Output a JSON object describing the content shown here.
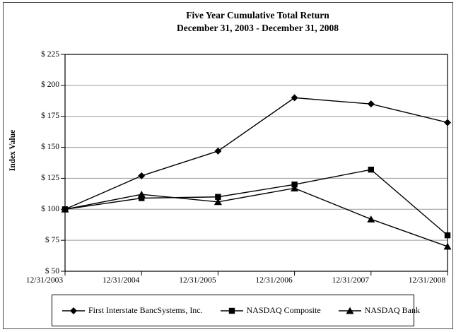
{
  "window": {
    "background": "#ffffff"
  },
  "colors": {
    "series": "#000000",
    "grid": "#9a9a9a",
    "axis": "#000000",
    "frame": "#000000",
    "outer_border": "#4a4a4a"
  },
  "chart_data": {
    "type": "line",
    "title": "Five Year Cumulative Total Return",
    "subtitle": "December 31, 2003 - December 31, 2008",
    "xlabel": "",
    "ylabel": "Index Value",
    "ylim": [
      50,
      225
    ],
    "y_tick_step": 25,
    "grid": true,
    "legend_position": "bottom",
    "y_ticks": [
      {
        "label": "$ 225",
        "value": 225
      },
      {
        "label": "$ 200",
        "value": 200
      },
      {
        "label": "$ 175",
        "value": 175
      },
      {
        "label": "$ 150",
        "value": 150
      },
      {
        "label": "$ 125",
        "value": 125
      },
      {
        "label": "$ 100",
        "value": 100
      },
      {
        "label": "$ 75",
        "value": 75
      },
      {
        "label": "$ 50",
        "value": 50
      }
    ],
    "categories": [
      "12/31/2003",
      "12/31/2004",
      "12/31/2005",
      "12/31/2006",
      "12/31/2007",
      "12/31/2008"
    ],
    "series": [
      {
        "name": "First Interstate BancSystems, Inc.",
        "marker": "diamond",
        "values": [
          100,
          127,
          147,
          190,
          185,
          170
        ]
      },
      {
        "name": "NASDAQ Composite",
        "marker": "square",
        "values": [
          100,
          109,
          110,
          120,
          132,
          79
        ]
      },
      {
        "name": "NASDAQ Bank",
        "marker": "triangle",
        "values": [
          100,
          112,
          106,
          117,
          92,
          70
        ]
      }
    ]
  }
}
